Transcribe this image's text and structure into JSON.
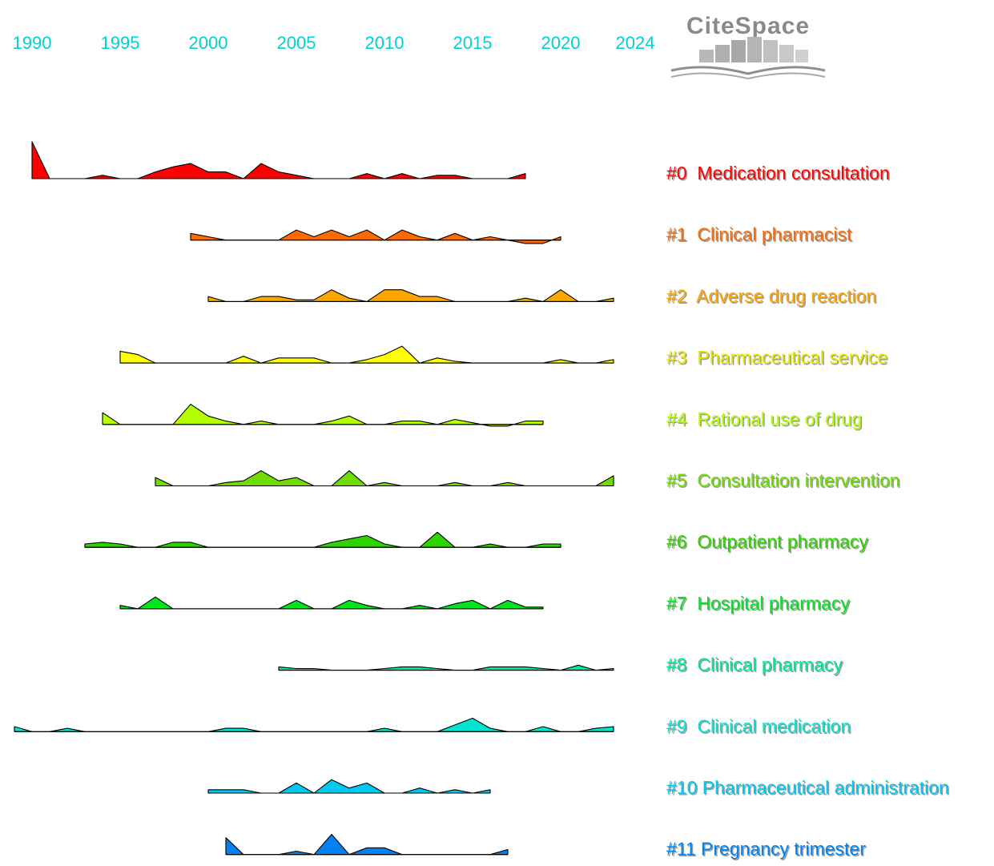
{
  "logo": {
    "text": "CiteSpace"
  },
  "chart_data": {
    "type": "area",
    "title": "",
    "xlabel": "",
    "ylabel": "",
    "xlim": [
      1989,
      2024
    ],
    "x_ticks": [
      "1990",
      "1995",
      "2000",
      "2005",
      "2010",
      "2015",
      "2020",
      "2024"
    ],
    "series": [
      {
        "name": "#0  Medication consultation",
        "color": "#ff0000",
        "points": [
          [
            1990,
            2.2
          ],
          [
            1991,
            0
          ],
          [
            1992,
            0
          ],
          [
            1993,
            0
          ],
          [
            1994,
            0.2
          ],
          [
            1995,
            0
          ],
          [
            1996,
            0
          ],
          [
            1997,
            0.4
          ],
          [
            1998,
            0.7
          ],
          [
            1999,
            0.9
          ],
          [
            2000,
            0.4
          ],
          [
            2001,
            0.4
          ],
          [
            2002,
            0
          ],
          [
            2003,
            0.9
          ],
          [
            2004,
            0.4
          ],
          [
            2005,
            0.2
          ],
          [
            2006,
            0
          ],
          [
            2007,
            0
          ],
          [
            2008,
            0
          ],
          [
            2009,
            0.3
          ],
          [
            2010,
            0
          ],
          [
            2011,
            0.3
          ],
          [
            2012,
            0
          ],
          [
            2013,
            0.2
          ],
          [
            2014,
            0.2
          ],
          [
            2015,
            0
          ],
          [
            2016,
            0
          ],
          [
            2017,
            0
          ],
          [
            2018,
            0.3
          ]
        ]
      },
      {
        "name": "#1  Clinical pharmacist",
        "color": "#ff6a00",
        "points": [
          [
            1999,
            0.4
          ],
          [
            2000,
            0.2
          ],
          [
            2001,
            0
          ],
          [
            2002,
            0
          ],
          [
            2003,
            0
          ],
          [
            2004,
            0
          ],
          [
            2005,
            0.6
          ],
          [
            2006,
            0.2
          ],
          [
            2007,
            0.6
          ],
          [
            2008,
            0.2
          ],
          [
            2009,
            0.6
          ],
          [
            2010,
            0
          ],
          [
            2011,
            0.6
          ],
          [
            2012,
            0.2
          ],
          [
            2013,
            0
          ],
          [
            2014,
            0.4
          ],
          [
            2015,
            0
          ],
          [
            2016,
            0.2
          ],
          [
            2017,
            0
          ],
          [
            2018,
            -0.2
          ],
          [
            2019,
            -0.2
          ],
          [
            2020,
            0.2
          ]
        ]
      },
      {
        "name": "#2  Adverse drug reaction",
        "color": "#ffa500",
        "points": [
          [
            2000,
            0.3
          ],
          [
            2001,
            0
          ],
          [
            2002,
            0
          ],
          [
            2003,
            0.3
          ],
          [
            2004,
            0.3
          ],
          [
            2005,
            0.1
          ],
          [
            2006,
            0.1
          ],
          [
            2007,
            0.7
          ],
          [
            2008,
            0.2
          ],
          [
            2009,
            0
          ],
          [
            2010,
            0.7
          ],
          [
            2011,
            0.7
          ],
          [
            2012,
            0.3
          ],
          [
            2013,
            0.3
          ],
          [
            2014,
            0
          ],
          [
            2015,
            0
          ],
          [
            2016,
            0
          ],
          [
            2017,
            0
          ],
          [
            2018,
            0.2
          ],
          [
            2019,
            0
          ],
          [
            2020,
            0.7
          ],
          [
            2021,
            0
          ],
          [
            2022,
            0
          ],
          [
            2023,
            0.2
          ]
        ]
      },
      {
        "name": "#3  Pharmaceutical service",
        "color": "#ffff00",
        "points": [
          [
            1995,
            0.7
          ],
          [
            1996,
            0.5
          ],
          [
            1997,
            0
          ],
          [
            1998,
            0
          ],
          [
            1999,
            0
          ],
          [
            2000,
            0
          ],
          [
            2001,
            0
          ],
          [
            2002,
            0.4
          ],
          [
            2003,
            0
          ],
          [
            2004,
            0.3
          ],
          [
            2005,
            0.3
          ],
          [
            2006,
            0.3
          ],
          [
            2007,
            0
          ],
          [
            2008,
            0
          ],
          [
            2009,
            0.2
          ],
          [
            2010,
            0.5
          ],
          [
            2011,
            1.0
          ],
          [
            2012,
            0
          ],
          [
            2013,
            0.3
          ],
          [
            2014,
            0.1
          ],
          [
            2015,
            0
          ],
          [
            2016,
            0
          ],
          [
            2017,
            0
          ],
          [
            2018,
            0
          ],
          [
            2019,
            0
          ],
          [
            2020,
            0.2
          ],
          [
            2021,
            0
          ],
          [
            2022,
            0
          ],
          [
            2023,
            0.2
          ]
        ]
      },
      {
        "name": "#4  Rational use of drug",
        "color": "#b4ff00",
        "points": [
          [
            1994,
            0.7
          ],
          [
            1995,
            0
          ],
          [
            1996,
            0
          ],
          [
            1997,
            0
          ],
          [
            1998,
            0
          ],
          [
            1999,
            1.2
          ],
          [
            2000,
            0.5
          ],
          [
            2001,
            0.2
          ],
          [
            2002,
            0
          ],
          [
            2003,
            0.2
          ],
          [
            2004,
            0
          ],
          [
            2005,
            0
          ],
          [
            2006,
            0
          ],
          [
            2007,
            0.2
          ],
          [
            2008,
            0.5
          ],
          [
            2009,
            0
          ],
          [
            2010,
            0
          ],
          [
            2011,
            0.2
          ],
          [
            2012,
            0.2
          ],
          [
            2013,
            0
          ],
          [
            2014,
            0.3
          ],
          [
            2015,
            0.1
          ],
          [
            2016,
            -0.1
          ],
          [
            2017,
            -0.1
          ],
          [
            2018,
            0.2
          ],
          [
            2019,
            0.2
          ]
        ]
      },
      {
        "name": "#5  Consultation intervention",
        "color": "#6edc00",
        "points": [
          [
            1997,
            0.5
          ],
          [
            1998,
            0
          ],
          [
            1999,
            0
          ],
          [
            2000,
            0
          ],
          [
            2001,
            0.2
          ],
          [
            2002,
            0.3
          ],
          [
            2003,
            0.9
          ],
          [
            2004,
            0.3
          ],
          [
            2005,
            0.5
          ],
          [
            2006,
            0
          ],
          [
            2007,
            0
          ],
          [
            2008,
            0.9
          ],
          [
            2009,
            0
          ],
          [
            2010,
            0.2
          ],
          [
            2011,
            0
          ],
          [
            2012,
            0
          ],
          [
            2013,
            0
          ],
          [
            2014,
            0.2
          ],
          [
            2015,
            0
          ],
          [
            2016,
            0
          ],
          [
            2017,
            0.2
          ],
          [
            2018,
            0
          ],
          [
            2019,
            0
          ],
          [
            2020,
            0
          ],
          [
            2021,
            0
          ],
          [
            2022,
            0
          ],
          [
            2023,
            0.6
          ]
        ]
      },
      {
        "name": "#6  Outpatient pharmacy",
        "color": "#2dd400",
        "points": [
          [
            1993,
            0.2
          ],
          [
            1994,
            0.3
          ],
          [
            1995,
            0.2
          ],
          [
            1996,
            0
          ],
          [
            1997,
            0
          ],
          [
            1998,
            0.3
          ],
          [
            1999,
            0.3
          ],
          [
            2000,
            0
          ],
          [
            2001,
            0
          ],
          [
            2002,
            0
          ],
          [
            2003,
            0
          ],
          [
            2004,
            0
          ],
          [
            2005,
            0
          ],
          [
            2006,
            0
          ],
          [
            2007,
            0.3
          ],
          [
            2008,
            0.5
          ],
          [
            2009,
            0.7
          ],
          [
            2010,
            0.2
          ],
          [
            2011,
            0
          ],
          [
            2012,
            0
          ],
          [
            2013,
            0.9
          ],
          [
            2014,
            0
          ],
          [
            2015,
            0
          ],
          [
            2016,
            0.2
          ],
          [
            2017,
            0
          ],
          [
            2018,
            0
          ],
          [
            2019,
            0.2
          ],
          [
            2020,
            0.2
          ]
        ]
      },
      {
        "name": "#7  Hospital pharmacy",
        "color": "#00e61e",
        "points": [
          [
            1995,
            0.2
          ],
          [
            1996,
            0
          ],
          [
            1997,
            0.7
          ],
          [
            1998,
            0
          ],
          [
            1999,
            0
          ],
          [
            2000,
            0
          ],
          [
            2001,
            0
          ],
          [
            2002,
            0
          ],
          [
            2003,
            0
          ],
          [
            2004,
            0
          ],
          [
            2005,
            0.5
          ],
          [
            2006,
            0
          ],
          [
            2007,
            0
          ],
          [
            2008,
            0.5
          ],
          [
            2009,
            0.2
          ],
          [
            2010,
            0
          ],
          [
            2011,
            0
          ],
          [
            2012,
            0.2
          ],
          [
            2013,
            0
          ],
          [
            2014,
            0.3
          ],
          [
            2015,
            0.5
          ],
          [
            2016,
            0
          ],
          [
            2017,
            0.5
          ],
          [
            2018,
            0.1
          ],
          [
            2019,
            0.1
          ]
        ]
      },
      {
        "name": "#8  Clinical pharmacy",
        "color": "#00e6a0",
        "points": [
          [
            2004,
            0.2
          ],
          [
            2005,
            0.1
          ],
          [
            2006,
            0.1
          ],
          [
            2007,
            0
          ],
          [
            2008,
            0
          ],
          [
            2009,
            0
          ],
          [
            2010,
            0.1
          ],
          [
            2011,
            0.2
          ],
          [
            2012,
            0.2
          ],
          [
            2013,
            0.1
          ],
          [
            2014,
            0
          ],
          [
            2015,
            0
          ],
          [
            2016,
            0.2
          ],
          [
            2017,
            0.2
          ],
          [
            2018,
            0.2
          ],
          [
            2019,
            0.1
          ],
          [
            2020,
            0
          ],
          [
            2021,
            0.3
          ],
          [
            2022,
            0
          ],
          [
            2023,
            0.1
          ]
        ]
      },
      {
        "name": "#9  Clinical medication",
        "color": "#00e6d2",
        "points": [
          [
            1989,
            0.3
          ],
          [
            1990,
            0
          ],
          [
            1991,
            0
          ],
          [
            1992,
            0.2
          ],
          [
            1993,
            0
          ],
          [
            1994,
            0
          ],
          [
            1995,
            0
          ],
          [
            1996,
            0
          ],
          [
            1997,
            0
          ],
          [
            1998,
            0
          ],
          [
            1999,
            0
          ],
          [
            2000,
            0
          ],
          [
            2001,
            0.2
          ],
          [
            2002,
            0.2
          ],
          [
            2003,
            0
          ],
          [
            2004,
            0
          ],
          [
            2005,
            0
          ],
          [
            2006,
            0
          ],
          [
            2007,
            0
          ],
          [
            2008,
            0
          ],
          [
            2009,
            0
          ],
          [
            2010,
            0.2
          ],
          [
            2011,
            0
          ],
          [
            2012,
            0
          ],
          [
            2013,
            0
          ],
          [
            2014,
            0.4
          ],
          [
            2015,
            0.8
          ],
          [
            2016,
            0.2
          ],
          [
            2017,
            0
          ],
          [
            2018,
            0
          ],
          [
            2019,
            0.3
          ],
          [
            2020,
            0
          ],
          [
            2021,
            0
          ],
          [
            2022,
            0.2
          ],
          [
            2023,
            0.3
          ]
        ]
      },
      {
        "name": "#10 Pharmaceutical administration",
        "color": "#00c8f0",
        "points": [
          [
            2000,
            0.2
          ],
          [
            2001,
            0.2
          ],
          [
            2002,
            0.2
          ],
          [
            2003,
            0
          ],
          [
            2004,
            0
          ],
          [
            2005,
            0.6
          ],
          [
            2006,
            0
          ],
          [
            2007,
            0.8
          ],
          [
            2008,
            0.3
          ],
          [
            2009,
            0.6
          ],
          [
            2010,
            0
          ],
          [
            2011,
            0
          ],
          [
            2012,
            0.3
          ],
          [
            2013,
            0
          ],
          [
            2014,
            0.2
          ],
          [
            2015,
            0
          ],
          [
            2016,
            0.2
          ]
        ]
      },
      {
        "name": "#11 Pregnancy trimester",
        "color": "#0082f0",
        "points": [
          [
            2001,
            1.0
          ],
          [
            2002,
            0
          ],
          [
            2003,
            0
          ],
          [
            2004,
            0
          ],
          [
            2005,
            0.2
          ],
          [
            2006,
            0
          ],
          [
            2007,
            1.2
          ],
          [
            2008,
            0
          ],
          [
            2009,
            0.4
          ],
          [
            2010,
            0.4
          ],
          [
            2011,
            0
          ],
          [
            2012,
            0
          ],
          [
            2013,
            0
          ],
          [
            2014,
            0
          ],
          [
            2015,
            0
          ],
          [
            2016,
            0
          ],
          [
            2017,
            0.3
          ]
        ]
      }
    ]
  }
}
